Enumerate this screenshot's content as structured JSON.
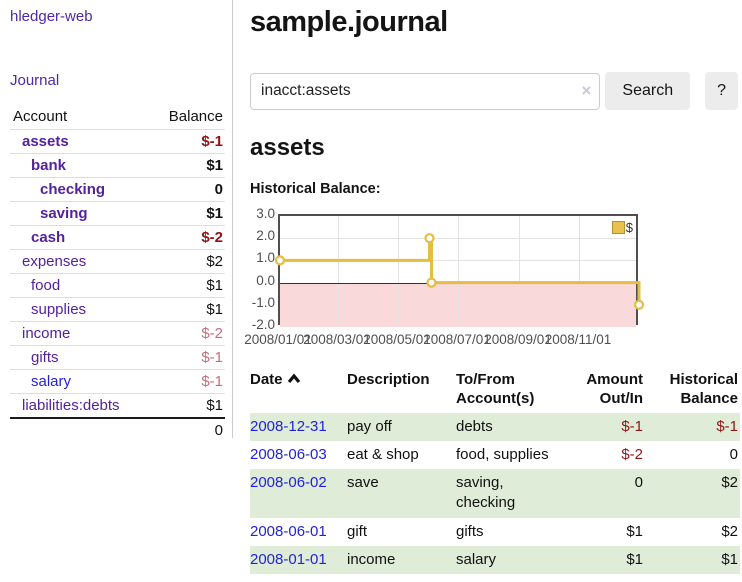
{
  "sidebar": {
    "app_title": "hledger-web",
    "nav": {
      "journal_label": "Journal"
    },
    "table": {
      "account_header": "Account",
      "balance_header": "Balance"
    },
    "accounts": [
      {
        "name": "assets",
        "balance": "$-1"
      },
      {
        "name": "bank",
        "balance": "$1"
      },
      {
        "name": "checking",
        "balance": "0"
      },
      {
        "name": "saving",
        "balance": "$1"
      },
      {
        "name": "cash",
        "balance": "$-2"
      },
      {
        "name": "expenses",
        "balance": "$2"
      },
      {
        "name": "food",
        "balance": "$1"
      },
      {
        "name": "supplies",
        "balance": "$1"
      },
      {
        "name": "income",
        "balance": "$-2"
      },
      {
        "name": "gifts",
        "balance": "$-1"
      },
      {
        "name": "salary",
        "balance": "$-1"
      },
      {
        "name": "liabilities:debts",
        "balance": "$1"
      }
    ],
    "total": "0"
  },
  "header": {
    "title": "sample.journal"
  },
  "search": {
    "value": "inacct:assets",
    "clear_icon": "×",
    "button_label": "Search",
    "help_label": "?"
  },
  "main": {
    "account_heading": "assets",
    "chart_label": "Historical Balance:"
  },
  "chart_data": {
    "type": "line",
    "title": "Historical Balance",
    "step": true,
    "legend_position": "top-right",
    "ylim": [
      -2,
      3
    ],
    "xlim": [
      "2008-01-01",
      "2009-01-01"
    ],
    "negative_region_shaded_below": 0,
    "yticks": [
      {
        "value": 3,
        "label": "3.0"
      },
      {
        "value": 2,
        "label": "2.0"
      },
      {
        "value": 1,
        "label": "1.0"
      },
      {
        "value": 0,
        "label": "0.0"
      },
      {
        "value": -1,
        "label": "-1.0"
      },
      {
        "value": -2,
        "label": "-2.0"
      }
    ],
    "xticks": [
      {
        "date": "2008-01-01",
        "label": "2008/01/01"
      },
      {
        "date": "2008-03-01",
        "label": "2008/03/01"
      },
      {
        "date": "2008-05-01",
        "label": "2008/05/01"
      },
      {
        "date": "2008-07-01",
        "label": "2008/07/01"
      },
      {
        "date": "2008-09-01",
        "label": "2008/09/01"
      },
      {
        "date": "2008-11-01",
        "label": "2008/11/01"
      }
    ],
    "series": [
      {
        "name": "$",
        "points": [
          {
            "x": "2008-01-01",
            "y": 1
          },
          {
            "x": "2008-06-01",
            "y": 2
          },
          {
            "x": "2008-06-03",
            "y": 0
          },
          {
            "x": "2008-12-31",
            "y": -1
          }
        ]
      }
    ]
  },
  "register": {
    "columns": {
      "date": "Date",
      "description": "Description",
      "accounts": "To/From Account(s)",
      "amount": "Amount Out/In",
      "balance": "Historical Balance"
    },
    "rows": [
      {
        "date": "2008-12-31",
        "description": "pay off",
        "accounts": "debts",
        "amount": "$-1",
        "balance": "$-1"
      },
      {
        "date": "2008-06-03",
        "description": "eat & shop",
        "accounts": "food, supplies",
        "amount": "$-2",
        "balance": "0"
      },
      {
        "date": "2008-06-02",
        "description": "save",
        "accounts": "saving, checking",
        "amount": "0",
        "balance": "$2"
      },
      {
        "date": "2008-06-01",
        "description": "gift",
        "accounts": "gifts",
        "amount": "$1",
        "balance": "$2"
      },
      {
        "date": "2008-01-01",
        "description": "income",
        "accounts": "salary",
        "amount": "$1",
        "balance": "$1"
      }
    ]
  },
  "colors": {
    "link_purple": "#54229b",
    "link_blue": "#2323d6",
    "negative_red": "#8e1515",
    "faded_negative": "#c2707a",
    "row_shade_green": "#deecd8",
    "chart_line_gold": "#e4bd42",
    "chart_negative_region": "#f9d9d9",
    "chart_zero_line": "#8b0b0b"
  }
}
